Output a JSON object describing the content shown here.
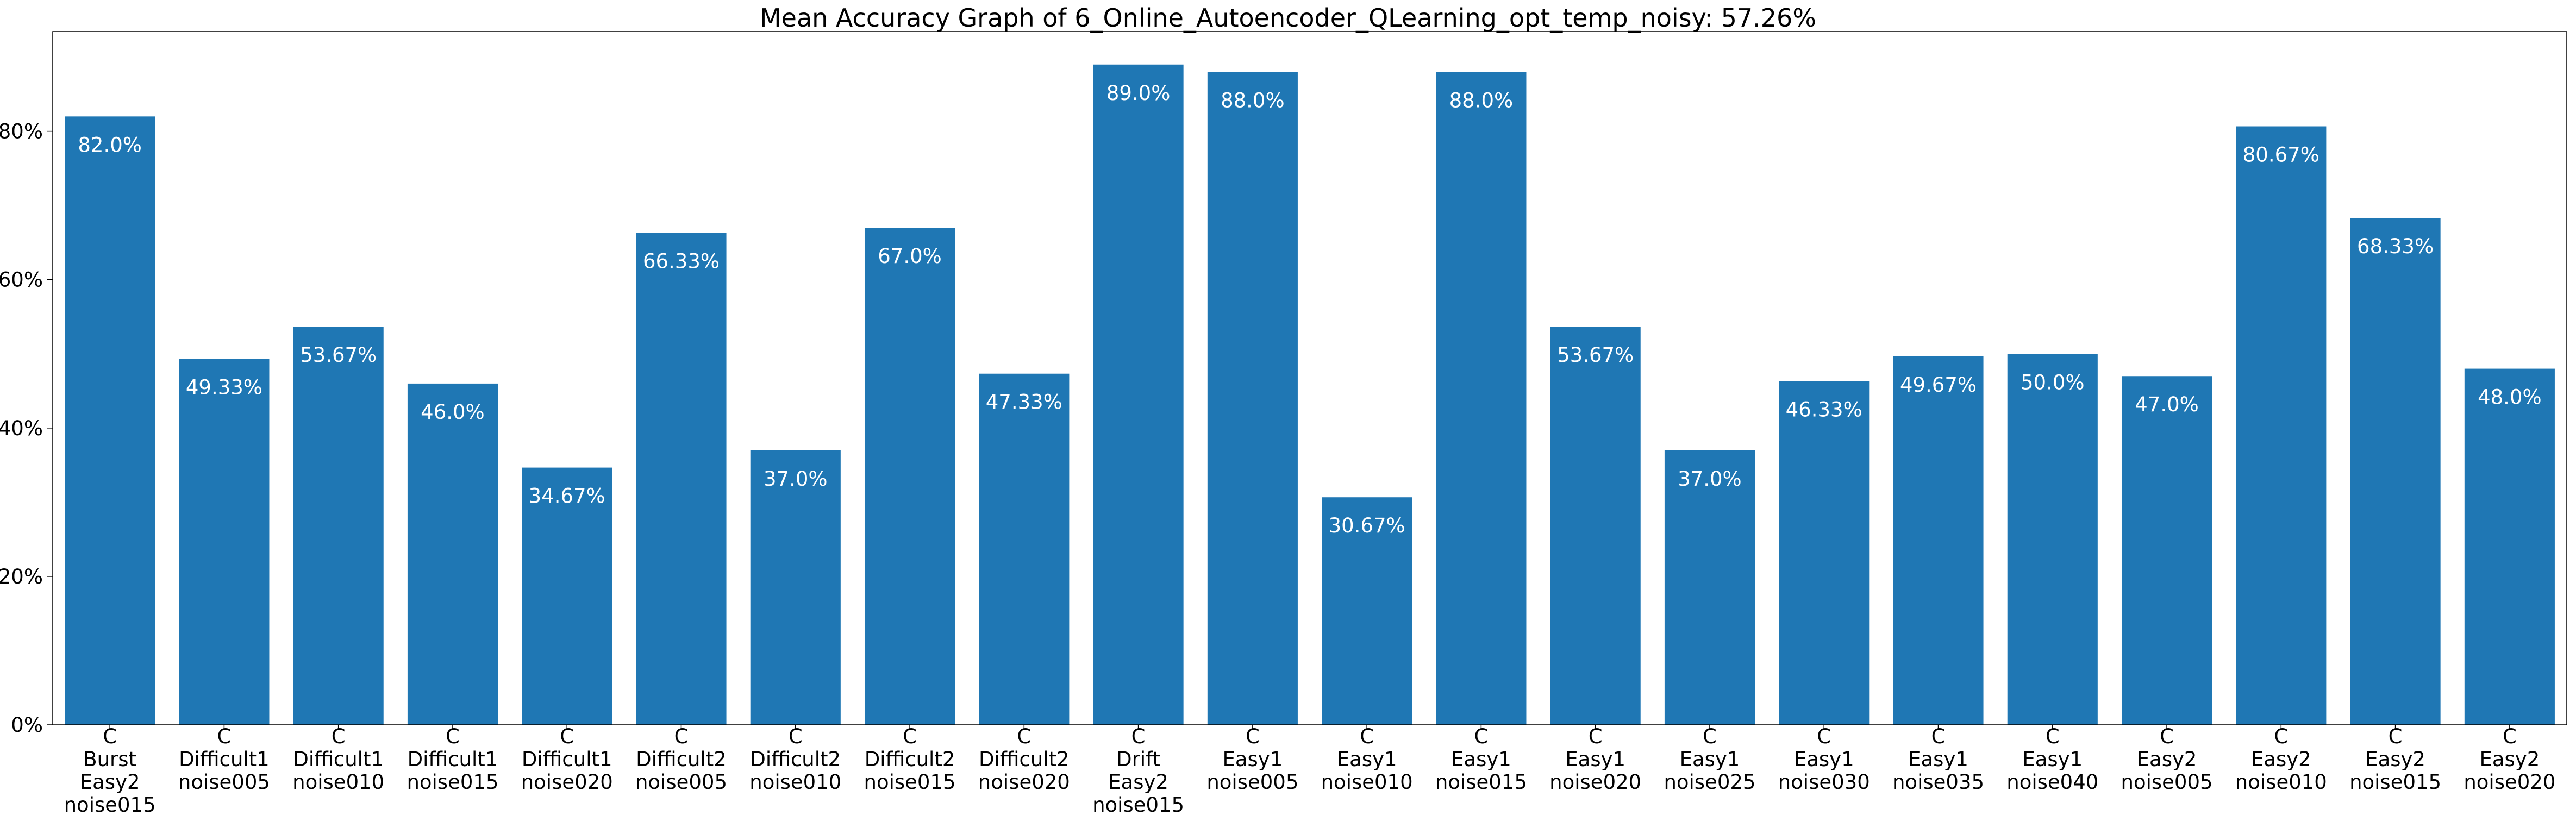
{
  "chart_data": {
    "type": "bar",
    "title": "Mean Accuracy Graph of 6_Online_Autoencoder_QLearning_opt_temp_noisy: 57.26%",
    "xlabel": "",
    "ylabel": "",
    "ylim": [
      0,
      93.45
    ],
    "yticks": [
      0,
      20,
      40,
      60,
      80
    ],
    "ytick_labels": [
      "0%",
      "20%",
      "40%",
      "60%",
      "80%"
    ],
    "bar_color": "#1f77b4",
    "label_color": "#ffffff",
    "grid": false,
    "categories": [
      "C\nBurst\nEasy2\nnoise015",
      "C\nDifficult1\nnoise005",
      "C\nDifficult1\nnoise010",
      "C\nDifficult1\nnoise015",
      "C\nDifficult1\nnoise020",
      "C\nDifficult2\nnoise005",
      "C\nDifficult2\nnoise010",
      "C\nDifficult2\nnoise015",
      "C\nDifficult2\nnoise020",
      "C\nDrift\nEasy2\nnoise015",
      "C\nEasy1\nnoise005",
      "C\nEasy1\nnoise010",
      "C\nEasy1\nnoise015",
      "C\nEasy1\nnoise020",
      "C\nEasy1\nnoise025",
      "C\nEasy1\nnoise030",
      "C\nEasy1\nnoise035",
      "C\nEasy1\nnoise040",
      "C\nEasy2\nnoise005",
      "C\nEasy2\nnoise010",
      "C\nEasy2\nnoise015",
      "C\nEasy2\nnoise020"
    ],
    "values": [
      82.0,
      49.33,
      53.67,
      46.0,
      34.67,
      66.33,
      37.0,
      67.0,
      47.33,
      89.0,
      88.0,
      30.67,
      88.0,
      53.67,
      37.0,
      46.33,
      49.67,
      50.0,
      47.0,
      80.67,
      68.33,
      48.0
    ],
    "value_labels": [
      "82.0%",
      "49.33%",
      "53.67%",
      "46.0%",
      "34.67%",
      "66.33%",
      "37.0%",
      "67.0%",
      "47.33%",
      "89.0%",
      "88.0%",
      "30.67%",
      "88.0%",
      "53.67%",
      "37.0%",
      "46.33%",
      "49.67%",
      "50.0%",
      "47.0%",
      "80.67%",
      "68.33%",
      "48.0%"
    ]
  }
}
